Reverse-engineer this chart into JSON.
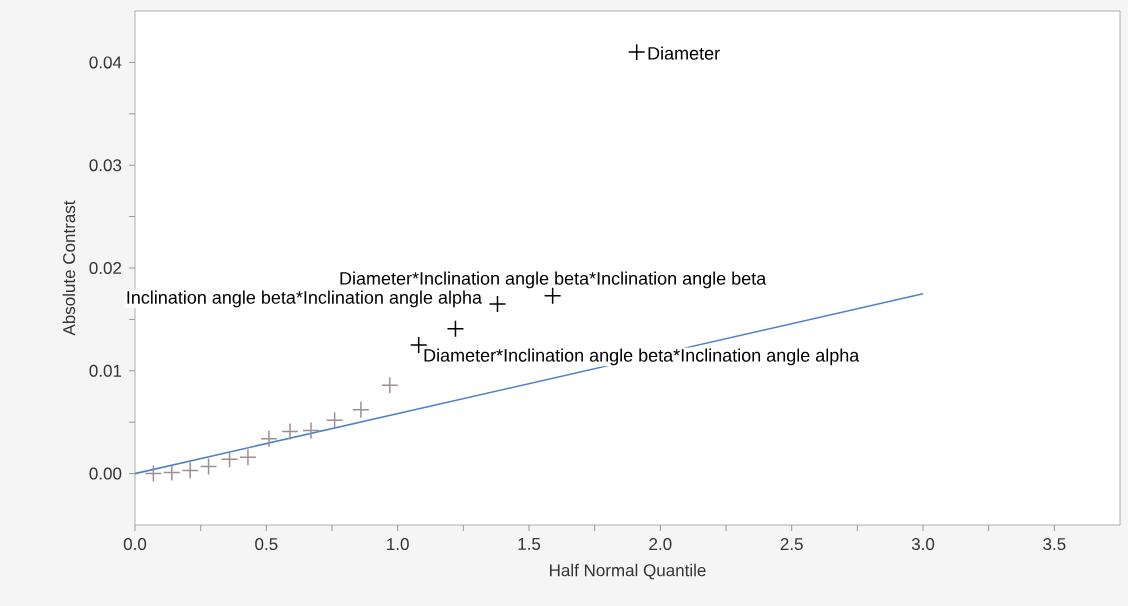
{
  "chart_data": {
    "type": "scatter",
    "xlabel": "Half Normal Quantile",
    "ylabel": "Absolute Contrast",
    "xlim": [
      0,
      3.75
    ],
    "ylim": [
      -0.005,
      0.045
    ],
    "xticks": [
      {
        "value": 0,
        "label": "0.0"
      },
      {
        "value": 0.25,
        "label": null
      },
      {
        "value": 0.5,
        "label": "0.5"
      },
      {
        "value": 0.75,
        "label": null
      },
      {
        "value": 1,
        "label": "1.0"
      },
      {
        "value": 1.25,
        "label": null
      },
      {
        "value": 1.5,
        "label": "1.5"
      },
      {
        "value": 1.75,
        "label": null
      },
      {
        "value": 2,
        "label": "2.0"
      },
      {
        "value": 2.25,
        "label": null
      },
      {
        "value": 2.5,
        "label": "2.5"
      },
      {
        "value": 2.75,
        "label": null
      },
      {
        "value": 3,
        "label": "3.0"
      },
      {
        "value": 3.25,
        "label": null
      },
      {
        "value": 3.5,
        "label": "3.5"
      }
    ],
    "yticks": [
      {
        "value": 0,
        "label": "0.00"
      },
      {
        "value": 0.005,
        "label": null
      },
      {
        "value": 0.01,
        "label": "0.01"
      },
      {
        "value": 0.015,
        "label": null
      },
      {
        "value": 0.02,
        "label": "0.02"
      },
      {
        "value": 0.025,
        "label": null
      },
      {
        "value": 0.03,
        "label": "0.03"
      },
      {
        "value": 0.035,
        "label": null
      },
      {
        "value": 0.04,
        "label": "0.04"
      }
    ],
    "series": [
      {
        "marker": "cross",
        "color": "#9c8f94",
        "x": [
          0.07,
          0.14,
          0.21,
          0.28,
          0.36,
          0.43,
          0.51,
          0.59,
          0.67,
          0.76,
          0.86,
          0.97
        ],
        "values": [
          0.0,
          0.0001,
          0.0003,
          0.0007,
          0.0014,
          0.0016,
          0.0034,
          0.0041,
          0.0042,
          0.0052,
          0.0062,
          0.0086
        ]
      },
      {
        "marker": "cross",
        "color": "#000000",
        "x": [
          1.08,
          1.22,
          1.38,
          1.59,
          1.91
        ],
        "values": [
          0.0125,
          0.0141,
          0.0165,
          0.0173,
          0.041
        ]
      },
      {
        "type": "line",
        "color": "#4f81c7",
        "x": [
          0,
          3.0
        ],
        "values": [
          0,
          0.0175
        ]
      }
    ],
    "annotations": [
      {
        "text": "Diameter",
        "x": 1.91,
        "y": 0.041
      },
      {
        "text": "Diameter*Inclination angle beta*Inclination angle beta",
        "x": 1.59,
        "y": 0.0173
      },
      {
        "text": "Inclination angle beta*Inclination angle alpha",
        "x": 1.38,
        "y": 0.0165
      },
      {
        "text": "Diameter*Inclination angle beta*Inclination angle alpha",
        "x": 1.08,
        "y": 0.0125
      }
    ]
  }
}
